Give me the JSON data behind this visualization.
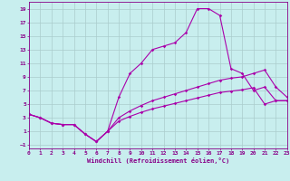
{
  "xlabel": "Windchill (Refroidissement éolien,°C)",
  "bg_color": "#c8eeee",
  "line_color": "#aa00aa",
  "grid_color": "#aacccc",
  "xlim": [
    0,
    23
  ],
  "ylim": [
    -1.5,
    20
  ],
  "xticks": [
    0,
    1,
    2,
    3,
    4,
    5,
    6,
    7,
    8,
    9,
    10,
    11,
    12,
    13,
    14,
    15,
    16,
    17,
    18,
    19,
    20,
    21,
    22,
    23
  ],
  "yticks": [
    -1,
    1,
    3,
    5,
    7,
    9,
    11,
    13,
    15,
    17,
    19
  ],
  "line1_x": [
    0,
    1,
    2,
    3,
    4,
    5,
    6,
    7,
    8,
    9,
    10,
    11,
    12,
    13,
    14,
    15,
    16,
    17,
    18,
    19,
    20,
    21,
    22,
    23
  ],
  "line1_y": [
    3.5,
    3.0,
    2.2,
    2.0,
    2.0,
    0.6,
    -0.5,
    1.0,
    6.0,
    9.5,
    11.0,
    13.0,
    13.5,
    14.0,
    15.5,
    19.0,
    19.0,
    18.0,
    10.2,
    9.5,
    7.0,
    7.5,
    5.5,
    5.5
  ],
  "line2_x": [
    0,
    1,
    2,
    3,
    4,
    5,
    6,
    7,
    8,
    9,
    10,
    11,
    12,
    13,
    14,
    15,
    16,
    17,
    18,
    19,
    20,
    21,
    22,
    23
  ],
  "line2_y": [
    3.5,
    3.0,
    2.2,
    2.0,
    2.0,
    0.6,
    -0.5,
    1.0,
    3.0,
    4.0,
    4.8,
    5.5,
    6.0,
    6.5,
    7.0,
    7.5,
    8.0,
    8.5,
    8.8,
    9.0,
    9.5,
    10.0,
    7.5,
    6.0
  ],
  "line3_x": [
    0,
    1,
    2,
    3,
    4,
    5,
    6,
    7,
    8,
    9,
    10,
    11,
    12,
    13,
    14,
    15,
    16,
    17,
    18,
    19,
    20,
    21,
    22,
    23
  ],
  "line3_y": [
    3.5,
    3.0,
    2.2,
    2.0,
    2.0,
    0.6,
    -0.5,
    1.0,
    2.5,
    3.2,
    3.8,
    4.3,
    4.7,
    5.1,
    5.5,
    5.9,
    6.3,
    6.7,
    6.9,
    7.1,
    7.4,
    5.0,
    5.5,
    5.5
  ]
}
